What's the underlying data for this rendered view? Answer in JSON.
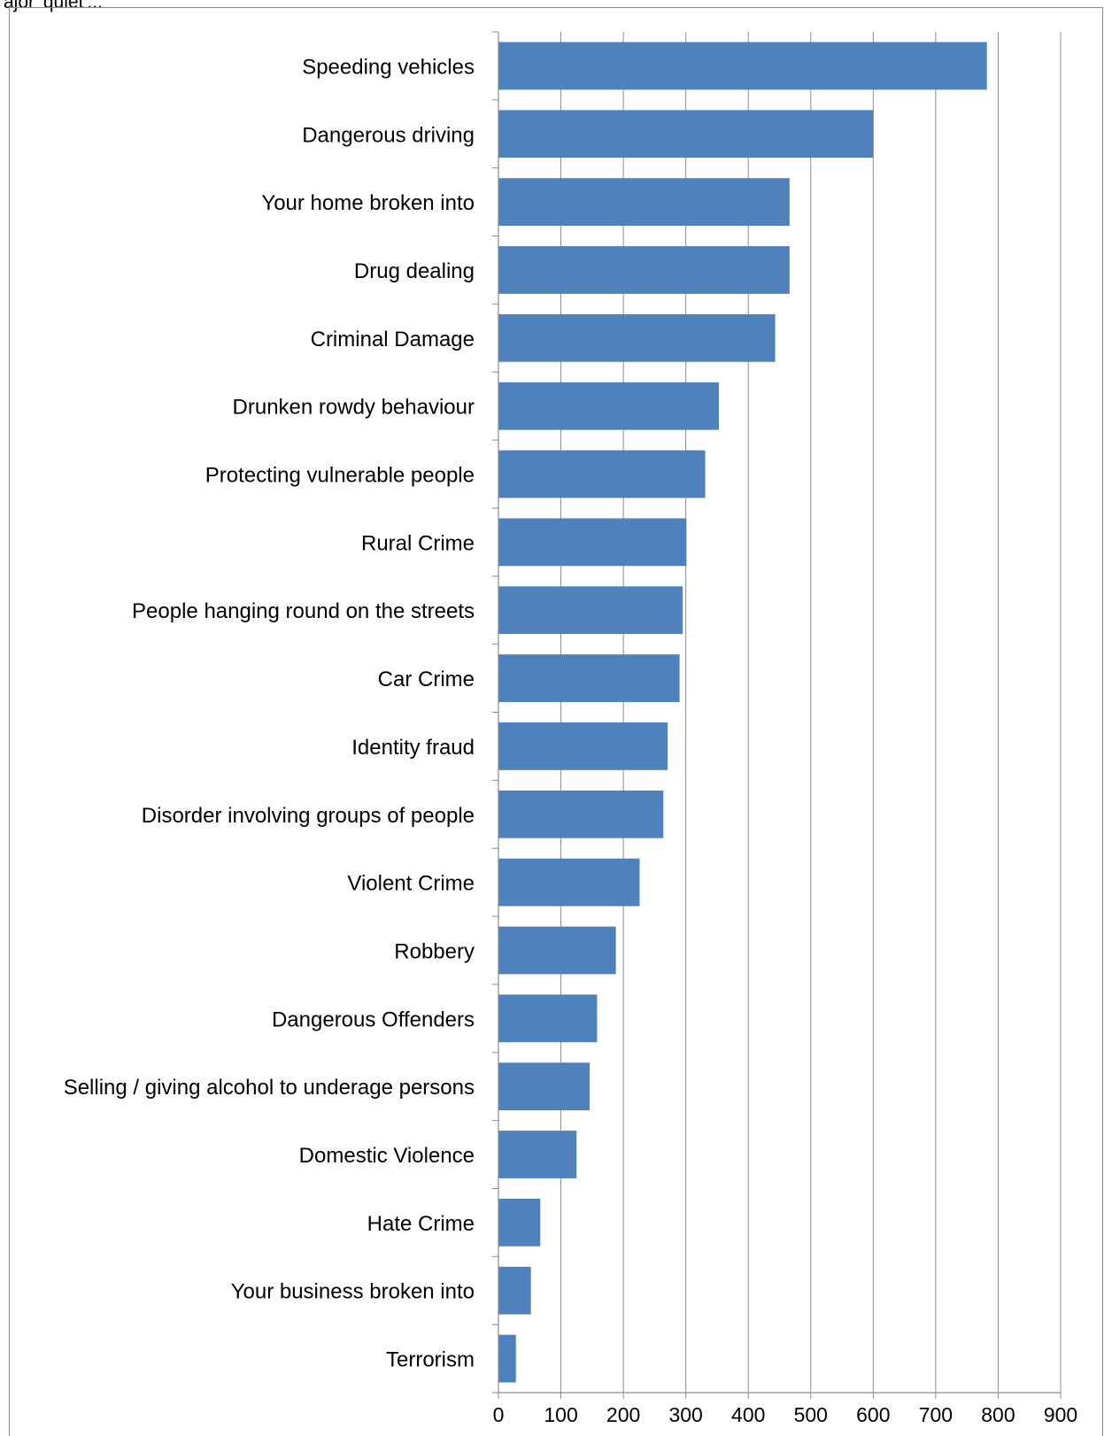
{
  "caption": "ajor 'quiet'...",
  "chart_data": {
    "type": "bar",
    "orientation": "horizontal",
    "title": "",
    "xlabel": "",
    "ylabel": "",
    "categories": [
      "Speeding vehicles",
      "Dangerous driving",
      "Your home broken into",
      "Drug dealing",
      "Criminal Damage",
      "Drunken rowdy behaviour",
      "Protecting vulnerable people",
      "Rural Crime",
      "People hanging round on the streets",
      "Car Crime",
      "Identity fraud",
      "Disorder involving groups of people",
      "Violent Crime",
      "Robbery",
      "Dangerous Offenders",
      "Selling / giving alcohol to underage persons",
      "Domestic Violence",
      "Hate Crime",
      "Your business broken into",
      "Terrorism"
    ],
    "values": [
      782,
      600,
      466,
      466,
      443,
      353,
      331,
      301,
      295,
      290,
      271,
      264,
      226,
      188,
      158,
      146,
      125,
      67,
      52,
      28
    ],
    "xlim": [
      0,
      900
    ],
    "xticks": [
      "0",
      "100",
      "200",
      "300",
      "400",
      "500",
      "600",
      "700",
      "800",
      "900"
    ],
    "grid": "vertical",
    "legend": "none",
    "bar_color": "#4f81bd"
  }
}
